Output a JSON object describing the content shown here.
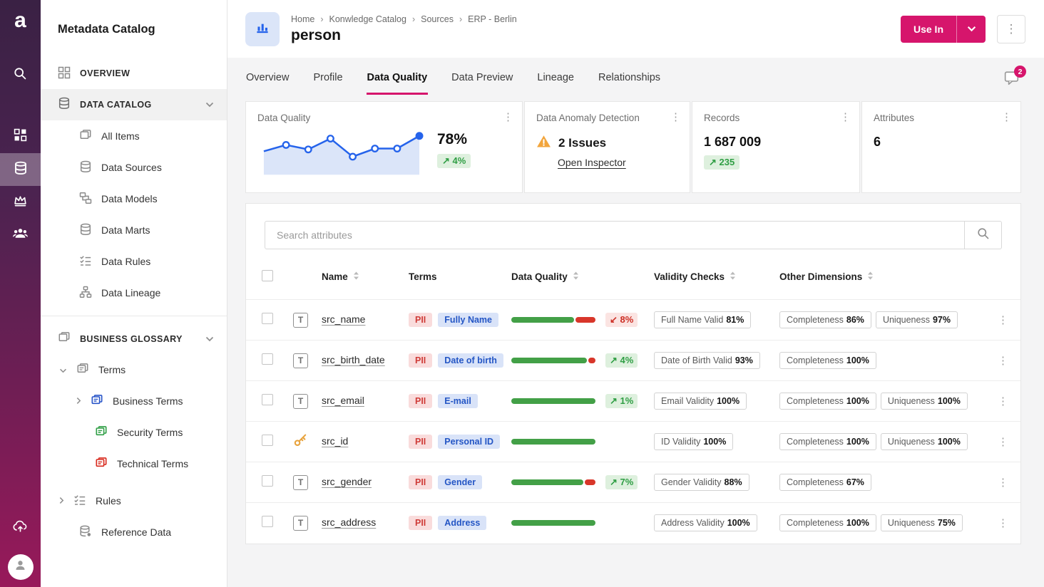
{
  "colors": {
    "accent": "#d6156c",
    "green": "#2f9e44",
    "red": "#d33026",
    "blue": "#2563eb",
    "orange": "#f2a53c"
  },
  "icons": {
    "kebab": "⋮"
  },
  "rail": {
    "logo": "a"
  },
  "sidebar": {
    "title": "Metadata Catalog",
    "overview": "OVERVIEW",
    "data_catalog": {
      "label": "DATA CATALOG",
      "items": [
        "All Items",
        "Data Sources",
        "Data Models",
        "Data Marts",
        "Data Rules",
        "Data Lineage"
      ]
    },
    "business_glossary": {
      "label": "BUSINESS GLOSSARY",
      "terms_label": "Terms",
      "term_items": [
        "Business Terms",
        "Security Terms",
        "Technical Terms"
      ],
      "rules_label": "Rules",
      "reference_label": "Reference Data"
    }
  },
  "header": {
    "breadcrumb": [
      "Home",
      "Konwledge Catalog",
      "Sources",
      "ERP - Berlin"
    ],
    "title": "person",
    "use_in": "Use In"
  },
  "tabs": [
    "Overview",
    "Profile",
    "Data Quality",
    "Data Preview",
    "Lineage",
    "Relationships"
  ],
  "active_tab": "Data Quality",
  "notification_count": "2",
  "cards": {
    "data_quality": {
      "title": "Data Quality",
      "value": "78%",
      "trend": "↗ 4%",
      "sparkline": [
        58,
        65,
        60,
        72,
        52,
        61,
        61,
        75
      ]
    },
    "anomaly": {
      "title": "Data Anomaly Detection",
      "issues": "2 Issues",
      "link": "Open Inspector"
    },
    "records": {
      "title": "Records",
      "value": "1 687 009",
      "trend": "↗ 235"
    },
    "attributes": {
      "title": "Attributes",
      "value": "6"
    }
  },
  "search": {
    "placeholder": "Search attributes"
  },
  "table": {
    "type_glyph": "T",
    "headers": {
      "name": "Name",
      "terms": "Terms",
      "data_quality": "Data Quality",
      "validity": "Validity Checks",
      "dimensions": "Other Dimensions"
    },
    "rows": [
      {
        "name": "src_name",
        "icon": "text",
        "pii": "PII",
        "term": "Fully Name",
        "dq": {
          "green": 76,
          "red": 24
        },
        "trend": "↙ 8%",
        "trend_dir": "down",
        "validity": {
          "label": "Full Name Valid",
          "value": "81%"
        },
        "dims": [
          {
            "label": "Completeness",
            "value": "86%"
          },
          {
            "label": "Uniqueness",
            "value": "97%"
          }
        ]
      },
      {
        "name": "src_birth_date",
        "icon": "text",
        "pii": "PII",
        "term": "Date of birth",
        "dq": {
          "green": 91,
          "red": 9
        },
        "trend": "↗ 4%",
        "trend_dir": "up",
        "validity": {
          "label": "Date of Birth Valid",
          "value": "93%"
        },
        "dims": [
          {
            "label": "Completeness",
            "value": "100%"
          }
        ]
      },
      {
        "name": "src_email",
        "icon": "text",
        "pii": "PII",
        "term": "E-mail",
        "dq": {
          "green": 100,
          "red": 0
        },
        "trend": "↗ 1%",
        "trend_dir": "up",
        "validity": {
          "label": "Email Validity",
          "value": "100%"
        },
        "dims": [
          {
            "label": "Completeness",
            "value": "100%"
          },
          {
            "label": "Uniqueness",
            "value": "100%"
          }
        ]
      },
      {
        "name": "src_id",
        "icon": "key",
        "pii": "PII",
        "term": "Personal ID",
        "dq": {
          "green": 100,
          "red": 0
        },
        "trend": null,
        "validity": {
          "label": "ID Validity",
          "value": "100%"
        },
        "dims": [
          {
            "label": "Completeness",
            "value": "100%"
          },
          {
            "label": "Uniqueness",
            "value": "100%"
          }
        ]
      },
      {
        "name": "src_gender",
        "icon": "text",
        "pii": "PII",
        "term": "Gender",
        "dq": {
          "green": 87,
          "red": 13
        },
        "trend": "↗ 7%",
        "trend_dir": "up",
        "validity": {
          "label": "Gender Validity",
          "value": "88%"
        },
        "dims": [
          {
            "label": "Completeness",
            "value": "67%"
          }
        ]
      },
      {
        "name": "src_address",
        "icon": "text",
        "pii": "PII",
        "term": "Address",
        "dq": {
          "green": 100,
          "red": 0
        },
        "trend": null,
        "validity": {
          "label": "Address Validity",
          "value": "100%"
        },
        "dims": [
          {
            "label": "Completeness",
            "value": "100%"
          },
          {
            "label": "Uniqueness",
            "value": "75%"
          }
        ]
      }
    ]
  }
}
